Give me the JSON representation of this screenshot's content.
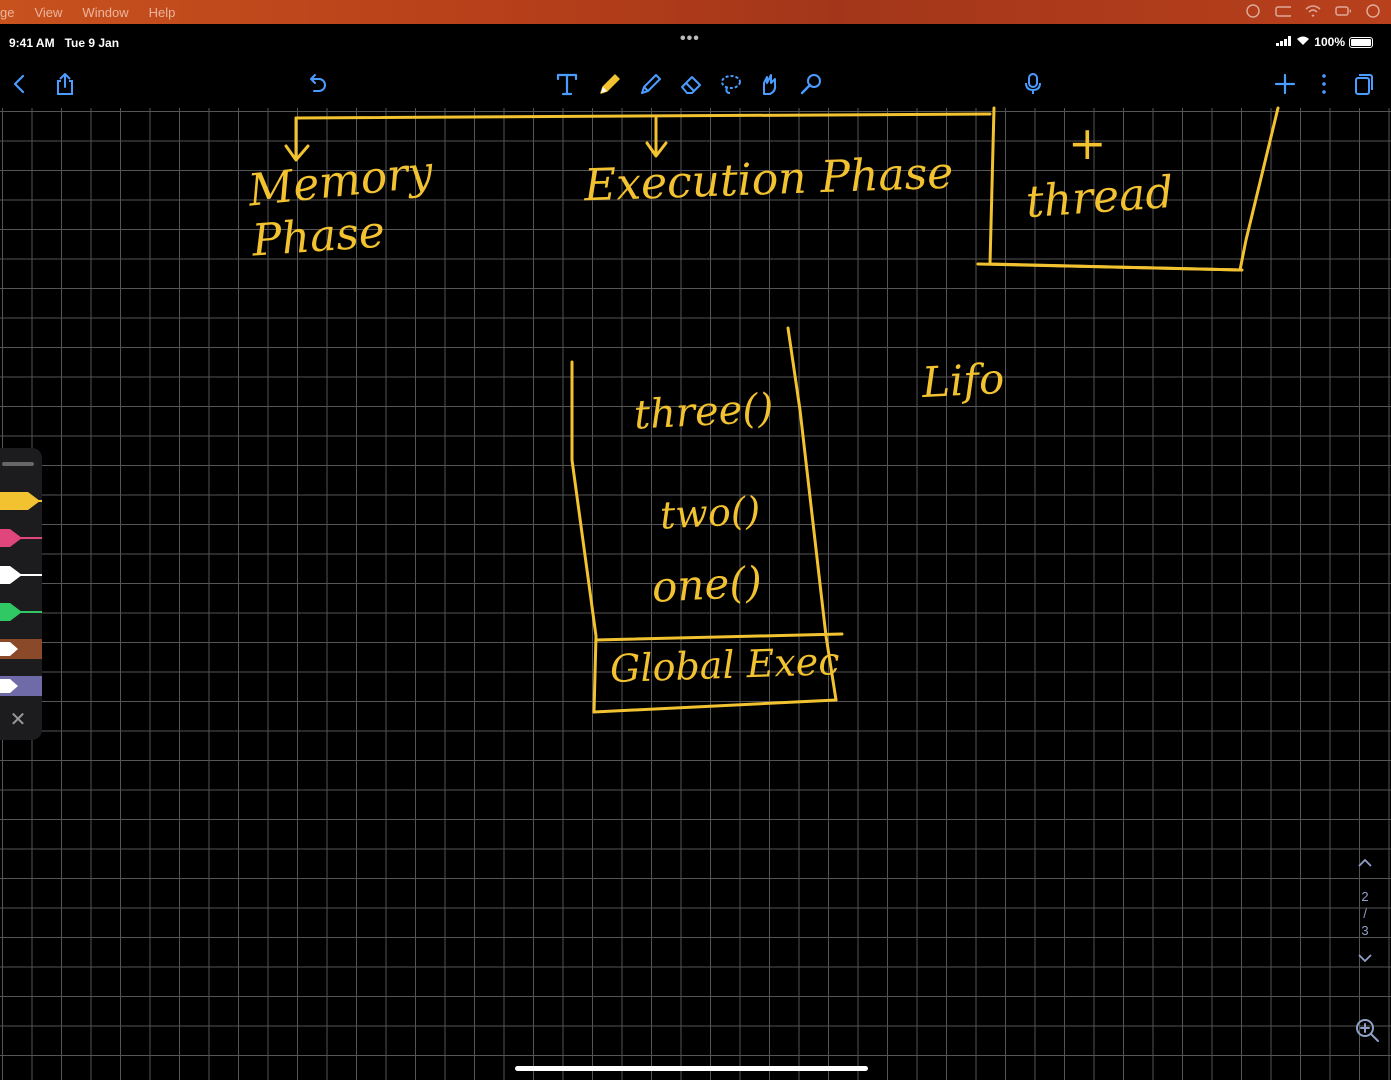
{
  "mac_menubar": {
    "items": [
      "ge",
      "View",
      "Window",
      "Help"
    ]
  },
  "ipad_status": {
    "time": "9:41 AM",
    "date": "Tue 9 Jan",
    "battery": "100%",
    "center_dots": "•••"
  },
  "toolbar": {
    "left_icons": [
      "back-icon",
      "share-icon",
      "undo-icon"
    ],
    "tools": [
      "text-tool-icon",
      "pen-tool-icon",
      "highlighter-tool-icon",
      "eraser-tool-icon",
      "lasso-tool-icon",
      "shapes-tool-icon",
      "laser-pointer-icon"
    ],
    "right_icons": [
      "microphone-icon",
      "add-page-icon",
      "more-icon",
      "pages-icon"
    ]
  },
  "ink": {
    "memory": "Memory",
    "phase": "Phase",
    "execution_phase": "Execution Phase",
    "plus": "+",
    "thread": "thread",
    "lifo": "Lifo",
    "stack_three": "three()",
    "stack_two": "two()",
    "stack_one": "one()",
    "stack_global": "Global Exec"
  },
  "pen_tray": {
    "pens": [
      {
        "color": "#f2c230"
      },
      {
        "color": "#e0457b"
      },
      {
        "color": "#ffffff"
      },
      {
        "color": "#2fc864"
      },
      {
        "color": "#8a4a2a"
      },
      {
        "color": "#6f6aa8"
      }
    ]
  },
  "page_nav": {
    "current": "2",
    "separator": "/",
    "total": "3"
  },
  "colors": {
    "ink": "#f2c230",
    "grid": "#555555",
    "canvas": "#000000"
  }
}
